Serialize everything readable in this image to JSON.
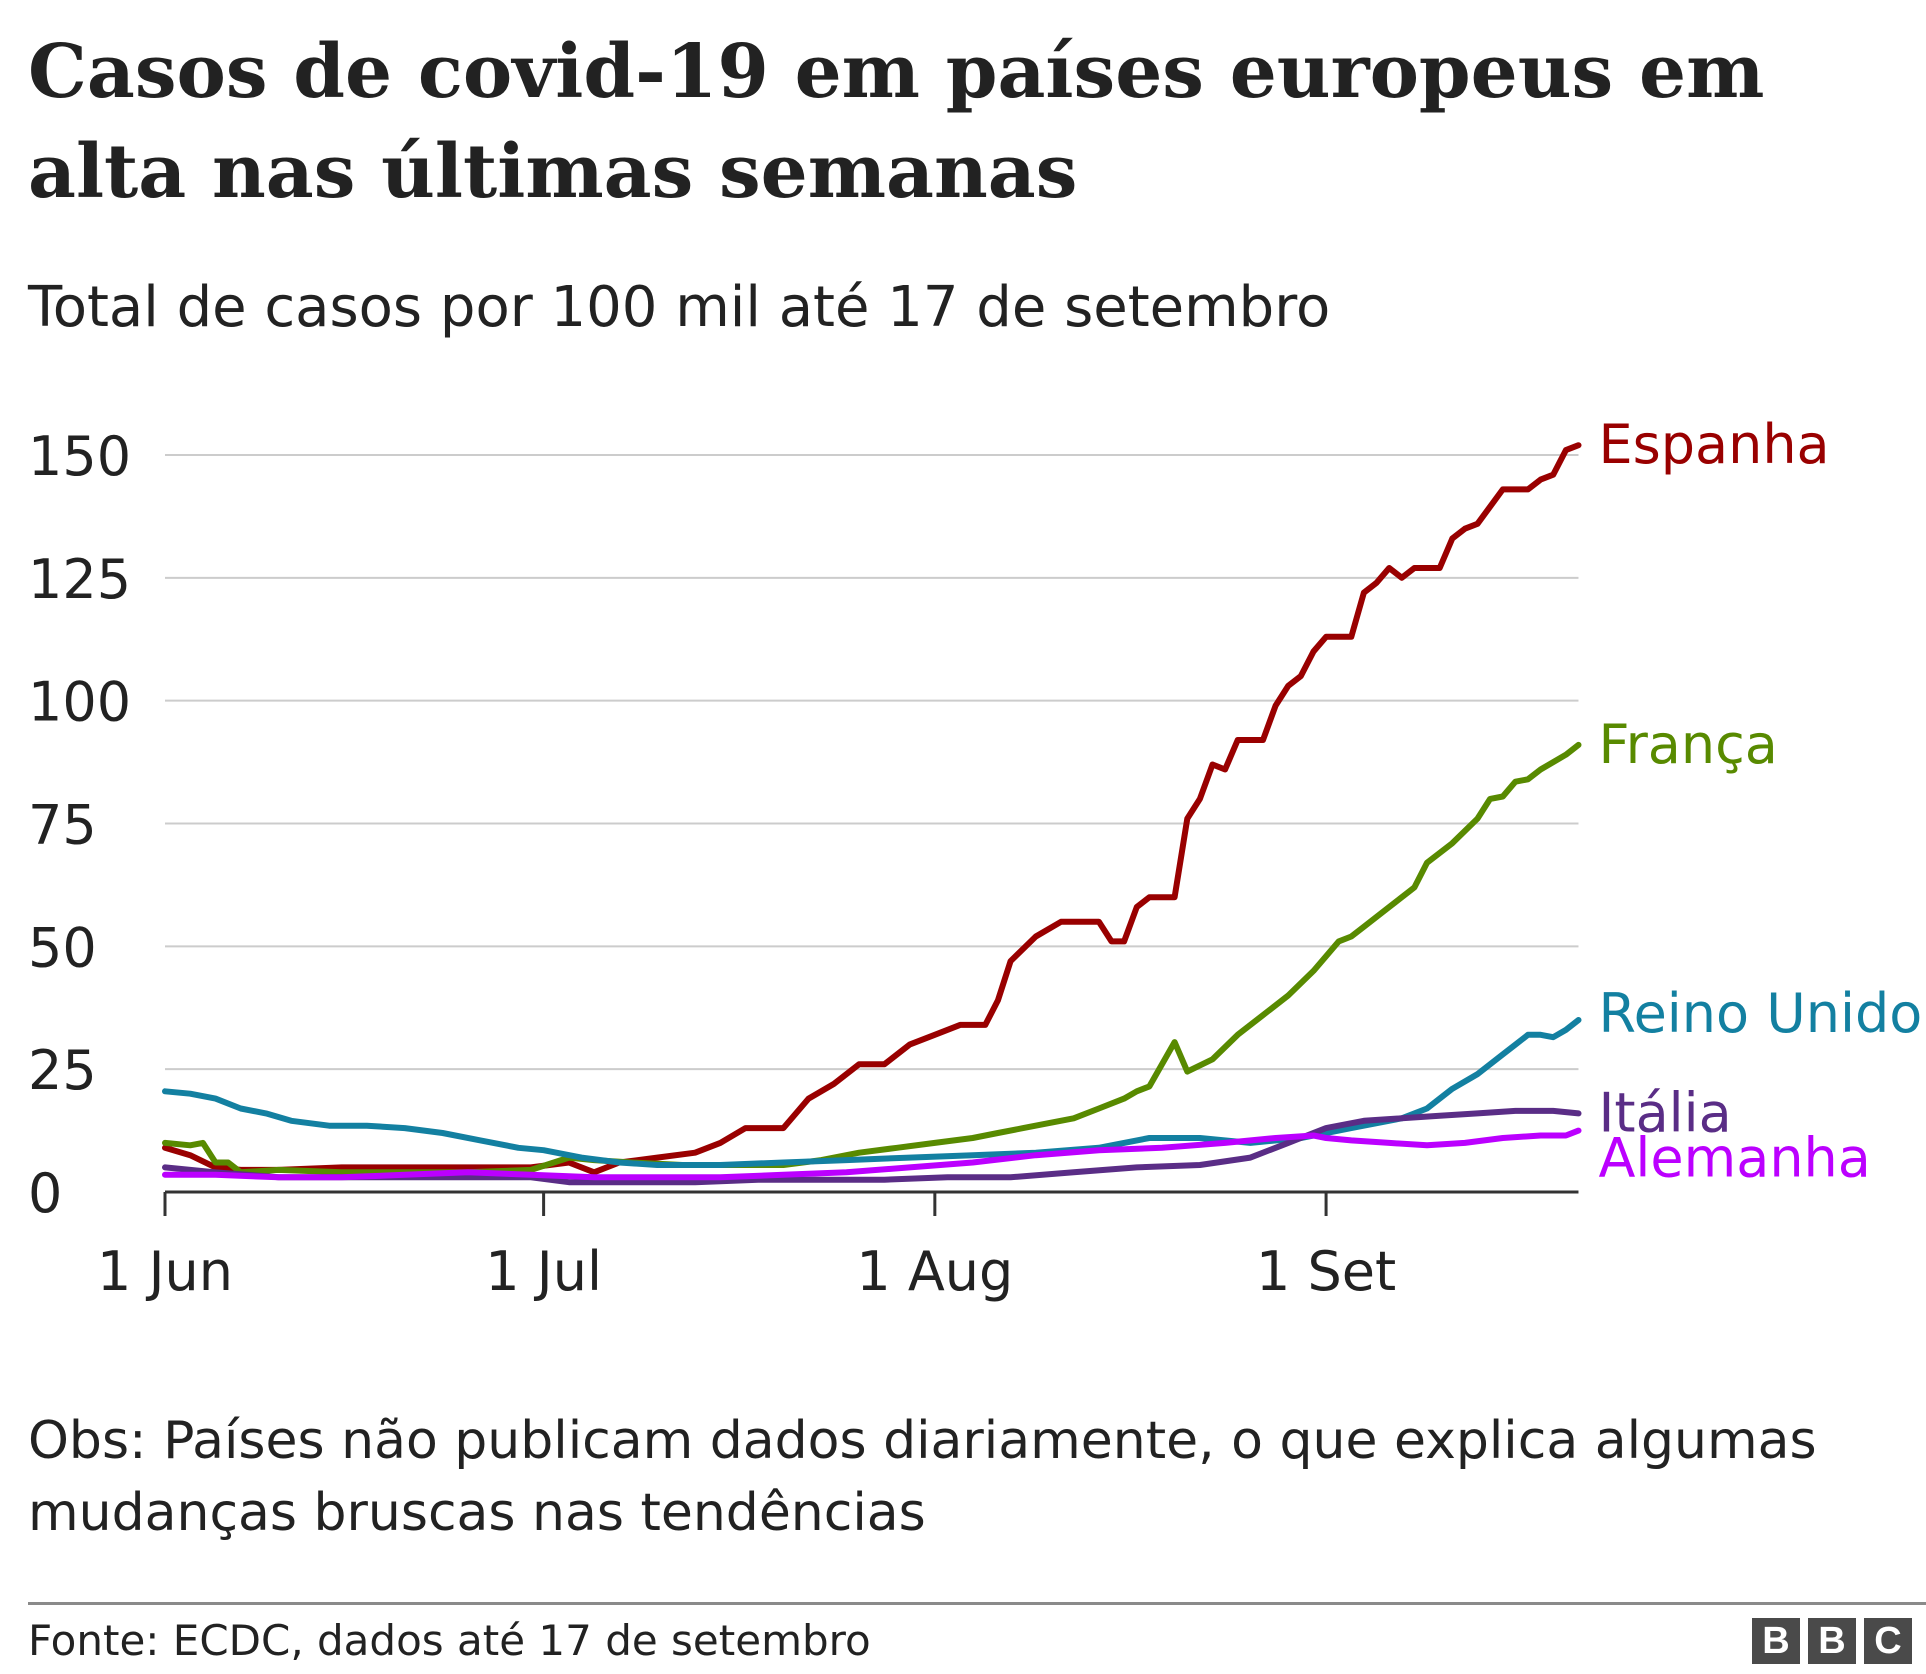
{
  "header": {
    "title": "Casos de covid-19 em países europeus em alta nas últimas semanas",
    "subtitle": "Total de casos por 100 mil até 17 de setembro"
  },
  "footer": {
    "note": "Obs: Países não publicam dados diariamente, o que explica algumas mudanças bruscas nas tendências",
    "source": "Fonte: ECDC, dados até 17 de setembro",
    "logo_letters": [
      "B",
      "B",
      "C"
    ]
  },
  "chart_data": {
    "type": "line",
    "title": "Casos de covid-19 em países europeus em alta nas últimas semanas",
    "subtitle": "Total de casos por 100 mil até 17 de setembro",
    "xlabel": "",
    "ylabel": "",
    "x_range": [
      "2020-06-01",
      "2020-09-17"
    ],
    "ylim": [
      0,
      150
    ],
    "yticks": [
      0,
      25,
      50,
      75,
      100,
      125,
      150
    ],
    "ytick_labels": [
      "0",
      "25",
      "50",
      "75",
      "100",
      "125",
      "150"
    ],
    "xticks": [
      {
        "date": "2020-06-01",
        "label": "1 Jun"
      },
      {
        "date": "2020-07-01",
        "label": "1 Jul"
      },
      {
        "date": "2020-08-01",
        "label": "1 Aug"
      },
      {
        "date": "2020-09-01",
        "label": "1 Set"
      }
    ],
    "grid": "horizontal",
    "legend": "direct labels at line ends (right)",
    "series": [
      {
        "name": "Espanha",
        "color": "#990000",
        "points": [
          [
            "2020-06-01",
            9
          ],
          [
            "2020-06-03",
            7.5
          ],
          [
            "2020-06-05",
            5
          ],
          [
            "2020-06-07",
            4.5
          ],
          [
            "2020-06-10",
            4.5
          ],
          [
            "2020-06-15",
            5
          ],
          [
            "2020-06-20",
            5
          ],
          [
            "2020-06-25",
            5
          ],
          [
            "2020-06-30",
            5
          ],
          [
            "2020-07-03",
            6
          ],
          [
            "2020-07-05",
            4
          ],
          [
            "2020-07-07",
            6
          ],
          [
            "2020-07-10",
            7
          ],
          [
            "2020-07-13",
            8
          ],
          [
            "2020-07-15",
            10
          ],
          [
            "2020-07-17",
            13
          ],
          [
            "2020-07-20",
            13
          ],
          [
            "2020-07-22",
            19
          ],
          [
            "2020-07-24",
            22
          ],
          [
            "2020-07-26",
            26
          ],
          [
            "2020-07-28",
            26
          ],
          [
            "2020-07-30",
            30
          ],
          [
            "2020-08-01",
            32
          ],
          [
            "2020-08-03",
            34
          ],
          [
            "2020-08-05",
            34
          ],
          [
            "2020-08-06",
            39
          ],
          [
            "2020-08-07",
            47
          ],
          [
            "2020-08-09",
            52
          ],
          [
            "2020-08-11",
            55
          ],
          [
            "2020-08-13",
            55
          ],
          [
            "2020-08-14",
            55
          ],
          [
            "2020-08-15",
            51
          ],
          [
            "2020-08-16",
            51
          ],
          [
            "2020-08-17",
            58
          ],
          [
            "2020-08-18",
            60
          ],
          [
            "2020-08-20",
            60
          ],
          [
            "2020-08-21",
            76
          ],
          [
            "2020-08-22",
            80
          ],
          [
            "2020-08-23",
            87
          ],
          [
            "2020-08-24",
            86
          ],
          [
            "2020-08-25",
            92
          ],
          [
            "2020-08-27",
            92
          ],
          [
            "2020-08-28",
            99
          ],
          [
            "2020-08-29",
            103
          ],
          [
            "2020-08-30",
            105
          ],
          [
            "2020-08-31",
            110
          ],
          [
            "2020-09-01",
            113
          ],
          [
            "2020-09-02",
            113
          ],
          [
            "2020-09-03",
            113
          ],
          [
            "2020-09-04",
            122
          ],
          [
            "2020-09-05",
            124
          ],
          [
            "2020-09-06",
            127
          ],
          [
            "2020-09-07",
            125
          ],
          [
            "2020-09-08",
            127
          ],
          [
            "2020-09-10",
            127
          ],
          [
            "2020-09-11",
            133
          ],
          [
            "2020-09-12",
            135
          ],
          [
            "2020-09-13",
            136
          ],
          [
            "2020-09-15",
            143
          ],
          [
            "2020-09-16",
            143
          ],
          [
            "2020-09-17",
            143
          ],
          [
            "2020-09-18",
            145
          ],
          [
            "2020-09-19",
            146
          ],
          [
            "2020-09-20",
            151
          ],
          [
            "2020-09-21",
            152
          ]
        ]
      },
      {
        "name": "França",
        "color": "#588a00",
        "points": [
          [
            "2020-06-01",
            10
          ],
          [
            "2020-06-03",
            9.5
          ],
          [
            "2020-06-04",
            10
          ],
          [
            "2020-06-05",
            6
          ],
          [
            "2020-06-06",
            6
          ],
          [
            "2020-06-07",
            4
          ],
          [
            "2020-06-10",
            4.5
          ],
          [
            "2020-06-15",
            4
          ],
          [
            "2020-06-20",
            4
          ],
          [
            "2020-06-25",
            4
          ],
          [
            "2020-06-30",
            4.5
          ],
          [
            "2020-07-03",
            7
          ],
          [
            "2020-07-05",
            6.5
          ],
          [
            "2020-07-08",
            6
          ],
          [
            "2020-07-12",
            5.5
          ],
          [
            "2020-07-15",
            5.5
          ],
          [
            "2020-07-20",
            5.5
          ],
          [
            "2020-07-23",
            6.5
          ],
          [
            "2020-07-26",
            8
          ],
          [
            "2020-07-29",
            9
          ],
          [
            "2020-08-01",
            10
          ],
          [
            "2020-08-04",
            11
          ],
          [
            "2020-08-06",
            12
          ],
          [
            "2020-08-08",
            13
          ],
          [
            "2020-08-10",
            14
          ],
          [
            "2020-08-12",
            15
          ],
          [
            "2020-08-14",
            17
          ],
          [
            "2020-08-16",
            19
          ],
          [
            "2020-08-17",
            20.5
          ],
          [
            "2020-08-18",
            21.5
          ],
          [
            "2020-08-20",
            30.5
          ],
          [
            "2020-08-21",
            24.5
          ],
          [
            "2020-08-23",
            27
          ],
          [
            "2020-08-25",
            32
          ],
          [
            "2020-08-27",
            36
          ],
          [
            "2020-08-29",
            40
          ],
          [
            "2020-08-31",
            45
          ],
          [
            "2020-09-01",
            48
          ],
          [
            "2020-09-02",
            51
          ],
          [
            "2020-09-03",
            52
          ],
          [
            "2020-09-04",
            54
          ],
          [
            "2020-09-06",
            58
          ],
          [
            "2020-09-08",
            62
          ],
          [
            "2020-09-09",
            67
          ],
          [
            "2020-09-11",
            71
          ],
          [
            "2020-09-13",
            76
          ],
          [
            "2020-09-14",
            80
          ],
          [
            "2020-09-15",
            80.5
          ],
          [
            "2020-09-16",
            83.5
          ],
          [
            "2020-09-17",
            84
          ],
          [
            "2020-09-18",
            86
          ],
          [
            "2020-09-20",
            89
          ],
          [
            "2020-09-21",
            91
          ]
        ]
      },
      {
        "name": "Reino Unido",
        "color": "#1380a1",
        "points": [
          [
            "2020-06-01",
            20.5
          ],
          [
            "2020-06-03",
            20
          ],
          [
            "2020-06-05",
            19
          ],
          [
            "2020-06-07",
            17
          ],
          [
            "2020-06-09",
            16
          ],
          [
            "2020-06-11",
            14.5
          ],
          [
            "2020-06-14",
            13.5
          ],
          [
            "2020-06-17",
            13.5
          ],
          [
            "2020-06-20",
            13
          ],
          [
            "2020-06-23",
            12
          ],
          [
            "2020-06-26",
            10.5
          ],
          [
            "2020-06-29",
            9
          ],
          [
            "2020-07-01",
            8.5
          ],
          [
            "2020-07-04",
            7
          ],
          [
            "2020-07-07",
            6
          ],
          [
            "2020-07-10",
            5.5
          ],
          [
            "2020-07-15",
            5.5
          ],
          [
            "2020-07-20",
            6
          ],
          [
            "2020-07-25",
            6.5
          ],
          [
            "2020-07-30",
            7
          ],
          [
            "2020-08-04",
            7.5
          ],
          [
            "2020-08-09",
            8
          ],
          [
            "2020-08-14",
            9
          ],
          [
            "2020-08-18",
            11
          ],
          [
            "2020-08-22",
            11
          ],
          [
            "2020-08-26",
            10
          ],
          [
            "2020-08-30",
            11
          ],
          [
            "2020-09-01",
            12
          ],
          [
            "2020-09-03",
            13
          ],
          [
            "2020-09-05",
            14
          ],
          [
            "2020-09-07",
            15
          ],
          [
            "2020-09-09",
            17
          ],
          [
            "2020-09-11",
            21
          ],
          [
            "2020-09-13",
            24
          ],
          [
            "2020-09-15",
            28
          ],
          [
            "2020-09-16",
            30
          ],
          [
            "2020-09-17",
            32
          ],
          [
            "2020-09-18",
            32
          ],
          [
            "2020-09-19",
            31.5
          ],
          [
            "2020-09-20",
            33
          ],
          [
            "2020-09-21",
            35
          ]
        ]
      },
      {
        "name": "Itália",
        "color": "#5a2d86",
        "points": [
          [
            "2020-06-01",
            5
          ],
          [
            "2020-06-05",
            4
          ],
          [
            "2020-06-10",
            3
          ],
          [
            "2020-06-15",
            3
          ],
          [
            "2020-06-20",
            3
          ],
          [
            "2020-06-25",
            3
          ],
          [
            "2020-06-30",
            3
          ],
          [
            "2020-07-03",
            2
          ],
          [
            "2020-07-08",
            2
          ],
          [
            "2020-07-13",
            2
          ],
          [
            "2020-07-18",
            2.5
          ],
          [
            "2020-07-23",
            2.5
          ],
          [
            "2020-07-28",
            2.5
          ],
          [
            "2020-08-02",
            3
          ],
          [
            "2020-08-07",
            3
          ],
          [
            "2020-08-12",
            4
          ],
          [
            "2020-08-17",
            5
          ],
          [
            "2020-08-22",
            5.5
          ],
          [
            "2020-08-26",
            7
          ],
          [
            "2020-08-29",
            10
          ],
          [
            "2020-09-01",
            13
          ],
          [
            "2020-09-04",
            14.5
          ],
          [
            "2020-09-07",
            15
          ],
          [
            "2020-09-10",
            15.5
          ],
          [
            "2020-09-13",
            16
          ],
          [
            "2020-09-16",
            16.5
          ],
          [
            "2020-09-19",
            16.5
          ],
          [
            "2020-09-21",
            16
          ]
        ]
      },
      {
        "name": "Alemanha",
        "color": "#bb00ff",
        "points": [
          [
            "2020-06-01",
            3.5
          ],
          [
            "2020-06-05",
            3.5
          ],
          [
            "2020-06-10",
            3
          ],
          [
            "2020-06-15",
            3
          ],
          [
            "2020-06-20",
            3.5
          ],
          [
            "2020-06-25",
            4
          ],
          [
            "2020-06-30",
            3.5
          ],
          [
            "2020-07-05",
            3
          ],
          [
            "2020-07-10",
            3
          ],
          [
            "2020-07-15",
            3
          ],
          [
            "2020-07-20",
            3.5
          ],
          [
            "2020-07-25",
            4
          ],
          [
            "2020-07-30",
            5
          ],
          [
            "2020-08-04",
            6
          ],
          [
            "2020-08-09",
            7.5
          ],
          [
            "2020-08-14",
            8.5
          ],
          [
            "2020-08-19",
            9
          ],
          [
            "2020-08-24",
            10
          ],
          [
            "2020-08-28",
            11
          ],
          [
            "2020-08-31",
            11.5
          ],
          [
            "2020-09-01",
            11
          ],
          [
            "2020-09-03",
            10.5
          ],
          [
            "2020-09-06",
            10
          ],
          [
            "2020-09-09",
            9.5
          ],
          [
            "2020-09-12",
            10
          ],
          [
            "2020-09-15",
            11
          ],
          [
            "2020-09-18",
            11.5
          ],
          [
            "2020-09-20",
            11.5
          ],
          [
            "2020-09-21",
            12.5
          ]
        ]
      }
    ]
  }
}
